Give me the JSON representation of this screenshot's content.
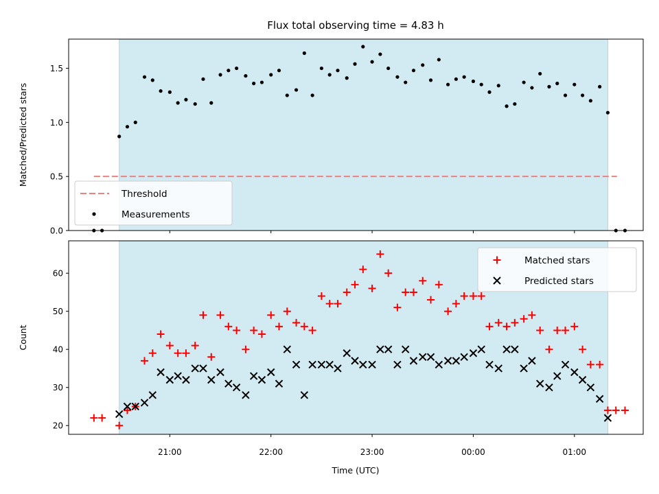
{
  "chart_data": {
    "type": "scatter",
    "title": "Flux total observing time = 4.83 h",
    "xlabel": "Time (UTC)",
    "x_unit": "hours after 20:00 UTC",
    "xlim": [
      20.0,
      25.68
    ],
    "xticks": [
      {
        "x": 21,
        "label": "21:00"
      },
      {
        "x": 22,
        "label": "22:00"
      },
      {
        "x": 23,
        "label": "23:00"
      },
      {
        "x": 24,
        "label": "00:00"
      },
      {
        "x": 25,
        "label": "01:00"
      }
    ],
    "observing_window": {
      "start": 20.5,
      "end": 25.33,
      "color": "#add8e6"
    },
    "panels": [
      {
        "ylabel": "Matched/Predicted stars",
        "ylim": [
          0,
          1.77
        ],
        "yticks": [
          0.0,
          0.5,
          1.0,
          1.5
        ],
        "ytick_labels": [
          "0.0",
          "0.5",
          "1.0",
          "1.5"
        ],
        "legend": {
          "position": "lower-left"
        },
        "threshold": {
          "name": "Threshold",
          "y": 0.5,
          "x": [
            20.25,
            25.42
          ],
          "color": "#f08080"
        },
        "series": [
          {
            "name": "Measurements",
            "marker": "dot",
            "color": "#000000",
            "x": [
              20.25,
              20.33,
              20.5,
              20.58,
              20.66,
              20.75,
              20.83,
              20.91,
              21.0,
              21.08,
              21.16,
              21.25,
              21.33,
              21.41,
              21.5,
              21.58,
              21.66,
              21.75,
              21.83,
              21.91,
              22.0,
              22.08,
              22.16,
              22.25,
              22.33,
              22.41,
              22.5,
              22.58,
              22.66,
              22.75,
              22.83,
              22.91,
              23.0,
              23.08,
              23.16,
              23.25,
              23.33,
              23.41,
              23.5,
              23.58,
              23.66,
              23.75,
              23.83,
              23.91,
              24.0,
              24.08,
              24.16,
              24.25,
              24.33,
              24.41,
              24.5,
              24.58,
              24.66,
              24.75,
              24.83,
              24.91,
              25.0,
              25.08,
              25.16,
              25.25,
              25.33,
              25.41,
              25.5
            ],
            "y": [
              0.0,
              0.0,
              0.87,
              0.96,
              1.0,
              1.42,
              1.39,
              1.29,
              1.28,
              1.18,
              1.21,
              1.17,
              1.4,
              1.18,
              1.44,
              1.48,
              1.5,
              1.43,
              1.36,
              1.37,
              1.44,
              1.48,
              1.25,
              1.3,
              1.64,
              1.25,
              1.5,
              1.44,
              1.48,
              1.41,
              1.54,
              1.7,
              1.56,
              1.63,
              1.5,
              1.42,
              1.37,
              1.48,
              1.53,
              1.39,
              1.58,
              1.35,
              1.4,
              1.42,
              1.38,
              1.35,
              1.28,
              1.34,
              1.15,
              1.17,
              1.37,
              1.32,
              1.45,
              1.33,
              1.36,
              1.25,
              1.35,
              1.25,
              1.2,
              1.33,
              1.09,
              0.0,
              0.0
            ]
          }
        ]
      },
      {
        "ylabel": "Count",
        "ylim": [
          17.7,
          68.5
        ],
        "yticks": [
          20,
          30,
          40,
          50,
          60
        ],
        "ytick_labels": [
          "20",
          "30",
          "40",
          "50",
          "60"
        ],
        "legend": {
          "position": "top-right"
        },
        "series": [
          {
            "name": "Matched stars",
            "marker": "plus",
            "color": "#ff0000",
            "x": [
              20.25,
              20.33,
              20.5,
              20.58,
              20.66,
              20.75,
              20.83,
              20.91,
              21.0,
              21.08,
              21.16,
              21.25,
              21.33,
              21.41,
              21.5,
              21.58,
              21.66,
              21.75,
              21.83,
              21.91,
              22.0,
              22.08,
              22.16,
              22.25,
              22.33,
              22.41,
              22.5,
              22.58,
              22.66,
              22.75,
              22.83,
              22.91,
              23.0,
              23.08,
              23.16,
              23.25,
              23.33,
              23.41,
              23.5,
              23.58,
              23.66,
              23.75,
              23.83,
              23.91,
              24.0,
              24.08,
              24.16,
              24.25,
              24.33,
              24.41,
              24.5,
              24.58,
              24.66,
              24.75,
              24.83,
              24.91,
              25.0,
              25.08,
              25.16,
              25.25,
              25.33,
              25.41,
              25.5
            ],
            "y": [
              22,
              22,
              20,
              24,
              25,
              37,
              39,
              44,
              41,
              39,
              39,
              41,
              49,
              38,
              49,
              46,
              45,
              40,
              45,
              44,
              49,
              46,
              50,
              47,
              46,
              45,
              54,
              52,
              52,
              55,
              57,
              61,
              56,
              65,
              60,
              51,
              55,
              55,
              58,
              53,
              57,
              50,
              52,
              54,
              54,
              54,
              46,
              47,
              46,
              47,
              48,
              49,
              45,
              40,
              45,
              45,
              46,
              40,
              36,
              36,
              24,
              24,
              24
            ]
          },
          {
            "name": "Predicted stars",
            "marker": "x",
            "color": "#000000",
            "x": [
              20.5,
              20.58,
              20.66,
              20.75,
              20.83,
              20.91,
              21.0,
              21.08,
              21.16,
              21.25,
              21.33,
              21.41,
              21.5,
              21.58,
              21.66,
              21.75,
              21.83,
              21.91,
              22.0,
              22.08,
              22.16,
              22.25,
              22.33,
              22.41,
              22.5,
              22.58,
              22.66,
              22.75,
              22.83,
              22.91,
              23.0,
              23.08,
              23.16,
              23.25,
              23.33,
              23.41,
              23.5,
              23.58,
              23.66,
              23.75,
              23.83,
              23.91,
              24.0,
              24.08,
              24.16,
              24.25,
              24.33,
              24.41,
              24.5,
              24.58,
              24.66,
              24.75,
              24.83,
              24.91,
              25.0,
              25.08,
              25.16,
              25.25,
              25.33
            ],
            "y": [
              23,
              25,
              25,
              26,
              28,
              34,
              32,
              33,
              32,
              35,
              35,
              32,
              34,
              31,
              30,
              28,
              33,
              32,
              34,
              31,
              40,
              36,
              28,
              36,
              36,
              36,
              35,
              39,
              37,
              36,
              36,
              40,
              40,
              36,
              40,
              37,
              38,
              38,
              36,
              37,
              37,
              38,
              39,
              40,
              36,
              35,
              40,
              40,
              35,
              37,
              31,
              30,
              33,
              36,
              34,
              32,
              30,
              27,
              22
            ]
          }
        ]
      }
    ]
  }
}
